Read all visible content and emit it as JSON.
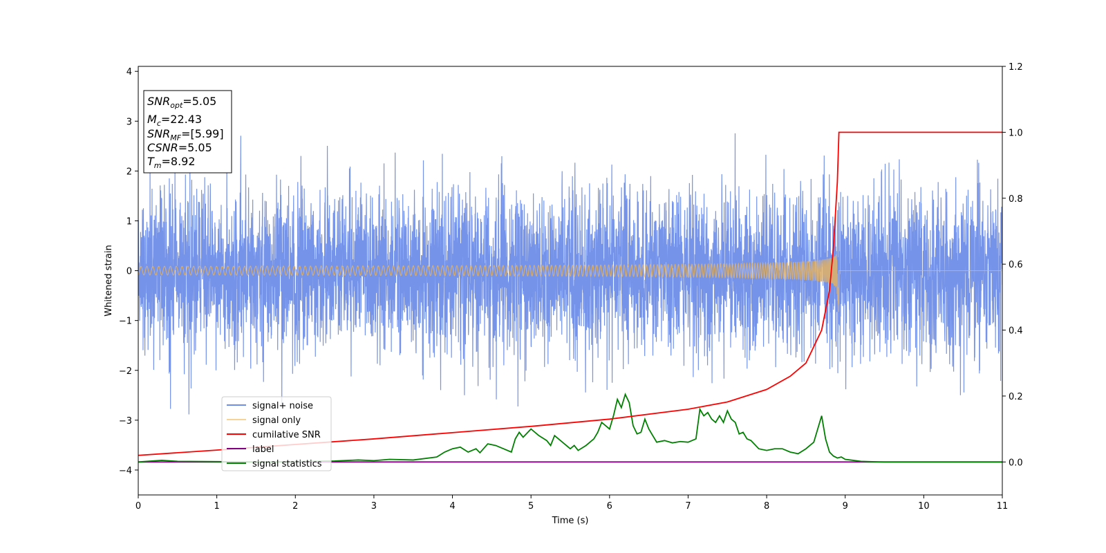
{
  "chart_data": {
    "type": "line",
    "xlabel": "Time (s)",
    "ylabel": "Whitened strain",
    "xlim": [
      0,
      11
    ],
    "ylim_left": [
      -4.5,
      4.1
    ],
    "ylim_right": [
      -0.1,
      1.2
    ],
    "x_ticks": [
      "0",
      "1",
      "2",
      "3",
      "4",
      "5",
      "6",
      "7",
      "8",
      "9",
      "10",
      "11"
    ],
    "y_left_ticks": [
      "−4",
      "−3",
      "−2",
      "−1",
      "0",
      "1",
      "2",
      "3",
      "4"
    ],
    "y_right_ticks": [
      "0.0",
      "0.2",
      "0.4",
      "0.6",
      "0.8",
      "1.0",
      "1.2"
    ],
    "grid": false,
    "legend_position": "lower-left",
    "info_box": {
      "snr_opt": {
        "symbol": "SNR",
        "sub": "opt",
        "value": "=5.05"
      },
      "mc": {
        "symbol": "M",
        "sub": "c",
        "value": "=22.43"
      },
      "snr_mf": {
        "symbol": "SNR",
        "sub": "MF",
        "value": "=[5.99]"
      },
      "csnr": {
        "symbol": "CSNR",
        "value": "=5.05"
      },
      "tm": {
        "symbol": "T",
        "sub": "m",
        "value": "=8.92"
      }
    },
    "series": [
      {
        "name": "signal+ noise",
        "color": "#6d8de8",
        "axis": "left",
        "description": "noisy whitened strain, amplitude roughly ±2 with peaks to ±3 over 0–11 s"
      },
      {
        "name": "signal only",
        "color": "#f2b552",
        "axis": "left",
        "merger_time": 8.92,
        "peak_amplitude": 0.6
      },
      {
        "name": "cumilative SNR",
        "color": "#ff0000",
        "axis": "right",
        "x": [
          0,
          1,
          2,
          3,
          4,
          5,
          6,
          7,
          7.5,
          8,
          8.3,
          8.5,
          8.7,
          8.8,
          8.85,
          8.9,
          8.92,
          11
        ],
        "values": [
          0.02,
          0.036,
          0.053,
          0.07,
          0.089,
          0.108,
          0.13,
          0.16,
          0.182,
          0.22,
          0.26,
          0.3,
          0.4,
          0.52,
          0.65,
          0.85,
          1.0,
          1.0
        ]
      },
      {
        "name": "label",
        "color": "#800080",
        "axis": "right",
        "x": [
          0,
          11
        ],
        "values": [
          0,
          0
        ]
      },
      {
        "name": "signal statistics",
        "color": "#008000",
        "axis": "right",
        "x": [
          0,
          0.3,
          0.5,
          1,
          1.5,
          2,
          2.5,
          2.8,
          3,
          3.2,
          3.5,
          3.8,
          3.9,
          4,
          4.1,
          4.2,
          4.3,
          4.35,
          4.45,
          4.55,
          4.65,
          4.75,
          4.8,
          4.85,
          4.9,
          5,
          5.1,
          5.2,
          5.25,
          5.3,
          5.4,
          5.5,
          5.55,
          5.6,
          5.7,
          5.8,
          5.85,
          5.9,
          5.95,
          6,
          6.05,
          6.1,
          6.15,
          6.2,
          6.25,
          6.3,
          6.35,
          6.4,
          6.45,
          6.5,
          6.55,
          6.6,
          6.7,
          6.8,
          6.9,
          7,
          7.1,
          7.15,
          7.2,
          7.25,
          7.3,
          7.35,
          7.4,
          7.45,
          7.5,
          7.55,
          7.6,
          7.65,
          7.7,
          7.75,
          7.8,
          7.9,
          8,
          8.1,
          8.2,
          8.3,
          8.4,
          8.5,
          8.55,
          8.6,
          8.65,
          8.7,
          8.75,
          8.8,
          8.85,
          8.9,
          8.95,
          9,
          9.1,
          9.2,
          9.3,
          9.5,
          10,
          11
        ],
        "values": [
          0.0,
          0.005,
          0.002,
          0.001,
          0.0,
          0.001,
          0.003,
          0.006,
          0.004,
          0.008,
          0.006,
          0.015,
          0.03,
          0.04,
          0.045,
          0.03,
          0.04,
          0.028,
          0.055,
          0.05,
          0.04,
          0.03,
          0.07,
          0.09,
          0.075,
          0.1,
          0.08,
          0.065,
          0.05,
          0.08,
          0.06,
          0.04,
          0.05,
          0.035,
          0.05,
          0.07,
          0.09,
          0.12,
          0.11,
          0.1,
          0.14,
          0.19,
          0.165,
          0.205,
          0.18,
          0.11,
          0.085,
          0.09,
          0.13,
          0.1,
          0.08,
          0.06,
          0.065,
          0.058,
          0.062,
          0.06,
          0.07,
          0.16,
          0.14,
          0.15,
          0.13,
          0.12,
          0.14,
          0.12,
          0.155,
          0.13,
          0.12,
          0.085,
          0.09,
          0.07,
          0.065,
          0.04,
          0.035,
          0.04,
          0.04,
          0.03,
          0.025,
          0.04,
          0.05,
          0.06,
          0.1,
          0.14,
          0.07,
          0.03,
          0.018,
          0.012,
          0.015,
          0.008,
          0.005,
          0.002,
          0.001,
          0.0,
          0.0,
          0.0
        ]
      }
    ]
  }
}
